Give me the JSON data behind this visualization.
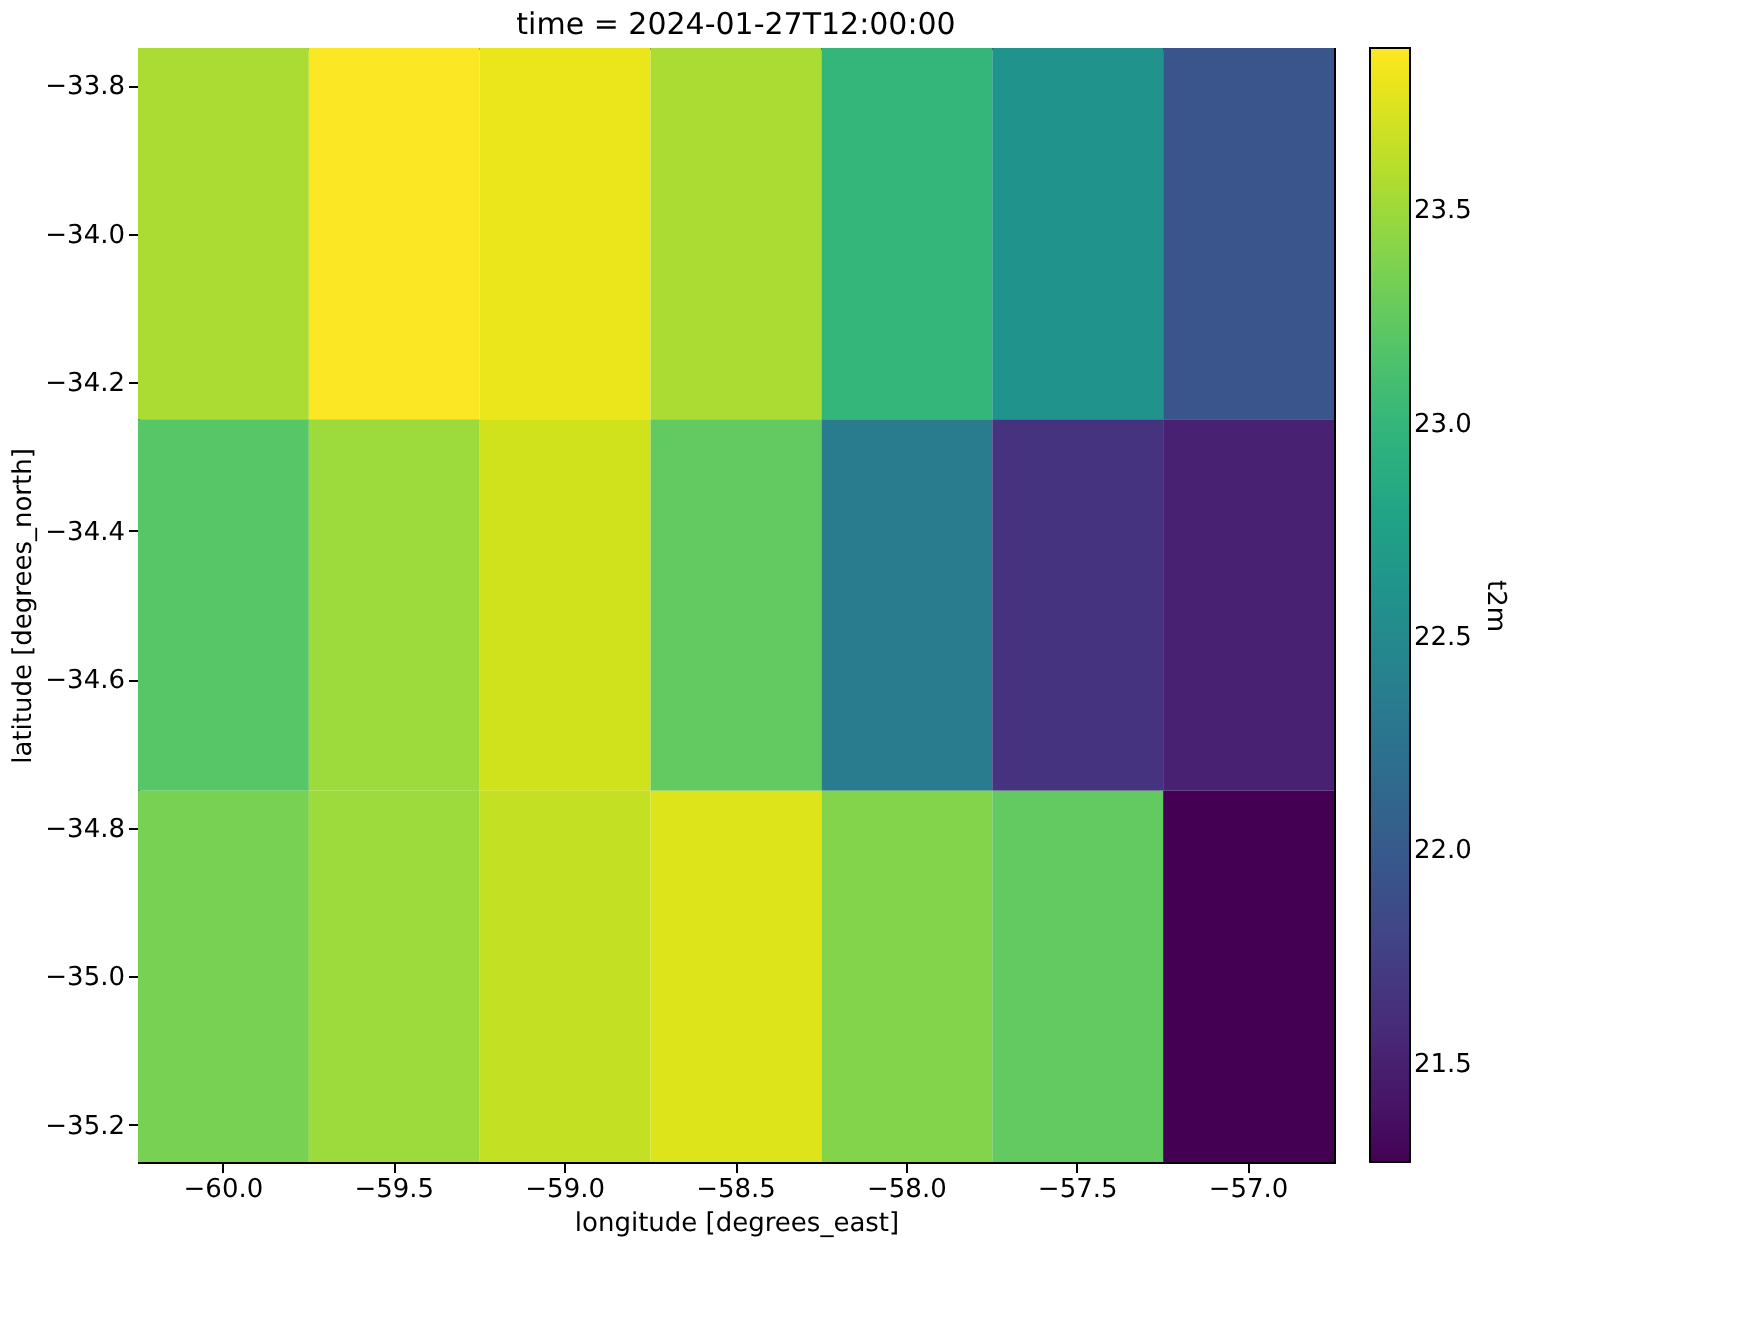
{
  "chart_data": {
    "type": "heatmap",
    "title": "time = 2024-01-27T12:00:00",
    "xlabel": "longitude [degrees_east]",
    "ylabel": "latitude [degrees_north]",
    "clabel": "t2m",
    "categories": [
      "−60.0",
      "−59.5",
      "−59.0",
      "−58.5",
      "−58.0",
      "−57.5",
      "−57.0"
    ],
    "cells": [
      [
        23.55,
        23.87,
        23.8,
        23.55,
        23.0,
        22.6,
        21.95
      ],
      [
        23.2,
        23.5,
        23.7,
        23.25,
        22.35,
        21.65,
        21.5
      ],
      [
        23.35,
        23.5,
        23.65,
        23.75,
        23.4,
        23.25,
        21.27
      ]
    ],
    "ylim": [
      -35.25,
      -33.75
    ],
    "yticks": [
      {
        "value": -33.8,
        "label": "−33.8"
      },
      {
        "value": -34.0,
        "label": "−34.0"
      },
      {
        "value": -34.2,
        "label": "−34.2"
      },
      {
        "value": -34.4,
        "label": "−34.4"
      },
      {
        "value": -34.6,
        "label": "−34.6"
      },
      {
        "value": -34.8,
        "label": "−34.8"
      },
      {
        "value": -35.0,
        "label": "−35.0"
      },
      {
        "value": -35.2,
        "label": "−35.2"
      }
    ],
    "clim": [
      21.27,
      23.88
    ],
    "cticks": [
      {
        "value": 21.5,
        "label": "21.5"
      },
      {
        "value": 22.0,
        "label": "22.0"
      },
      {
        "value": 22.5,
        "label": "22.5"
      },
      {
        "value": 23.0,
        "label": "23.0"
      },
      {
        "value": 23.5,
        "label": "23.5"
      }
    ],
    "grid": false
  }
}
